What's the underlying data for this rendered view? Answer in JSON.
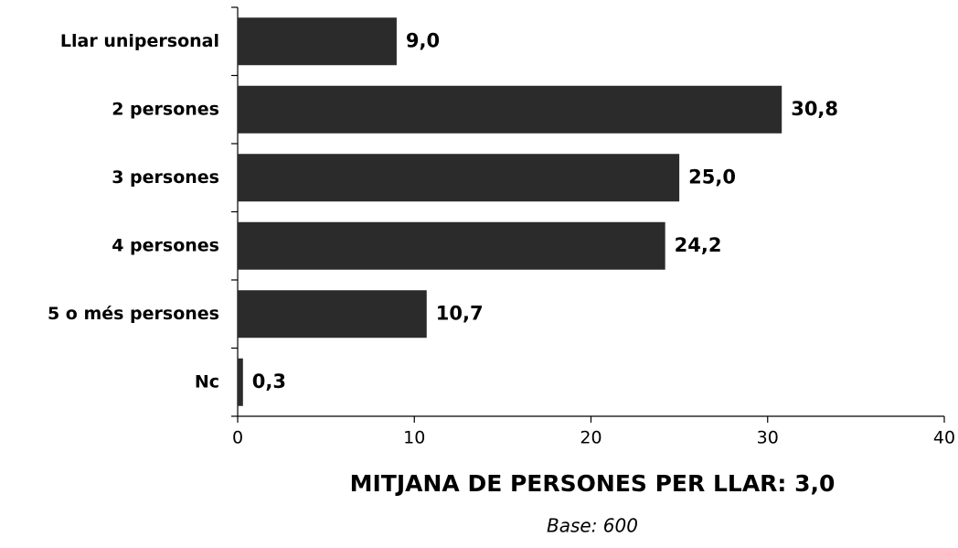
{
  "chart_data": {
    "type": "bar",
    "orientation": "horizontal",
    "title": "MITJANA DE PERSONES PER LLAR: 3,0",
    "subtitle": "Base: 600",
    "categories": [
      "Llar unipersonal",
      "2 persones",
      "3 persones",
      "4 persones",
      "5 o més persones",
      "Nc"
    ],
    "values": [
      9.0,
      30.8,
      25.0,
      24.2,
      10.7,
      0.3
    ],
    "value_labels": [
      "9,0",
      "30,8",
      "25,0",
      "24,2",
      "10,7",
      "0,3"
    ],
    "color": "#2b2b2b",
    "xlim": [
      0,
      40
    ],
    "xticks": [
      0,
      10,
      20,
      30,
      40
    ]
  }
}
